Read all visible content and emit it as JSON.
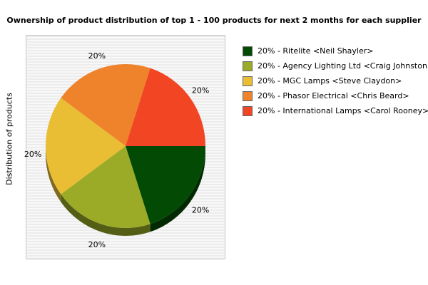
{
  "chart_data": {
    "type": "pie",
    "title": "Ownership of product distribution of top 1 - 100 products for next 2 months for each supplier",
    "ylabel": "Distribution of products",
    "slices": [
      {
        "label": "20% - Ritelite <Neil Shayler>",
        "value": 20,
        "pct_label": "20%",
        "color": "#034a04"
      },
      {
        "label": "20% - Agency Lighting Ltd <Craig Johnston>",
        "value": 20,
        "pct_label": "20%",
        "color": "#9bab27"
      },
      {
        "label": "20% - MGC Lamps <Steve Claydon>",
        "value": 20,
        "pct_label": "20%",
        "color": "#e9be34"
      },
      {
        "label": "20% - Phasor Electrical <Chris Beard>",
        "value": 20,
        "pct_label": "20%",
        "color": "#ef832c"
      },
      {
        "label": "20% - International Lamps <Carol Rooney>",
        "value": 20,
        "pct_label": "20%",
        "color": "#f24523"
      }
    ],
    "legend_position": "right"
  }
}
